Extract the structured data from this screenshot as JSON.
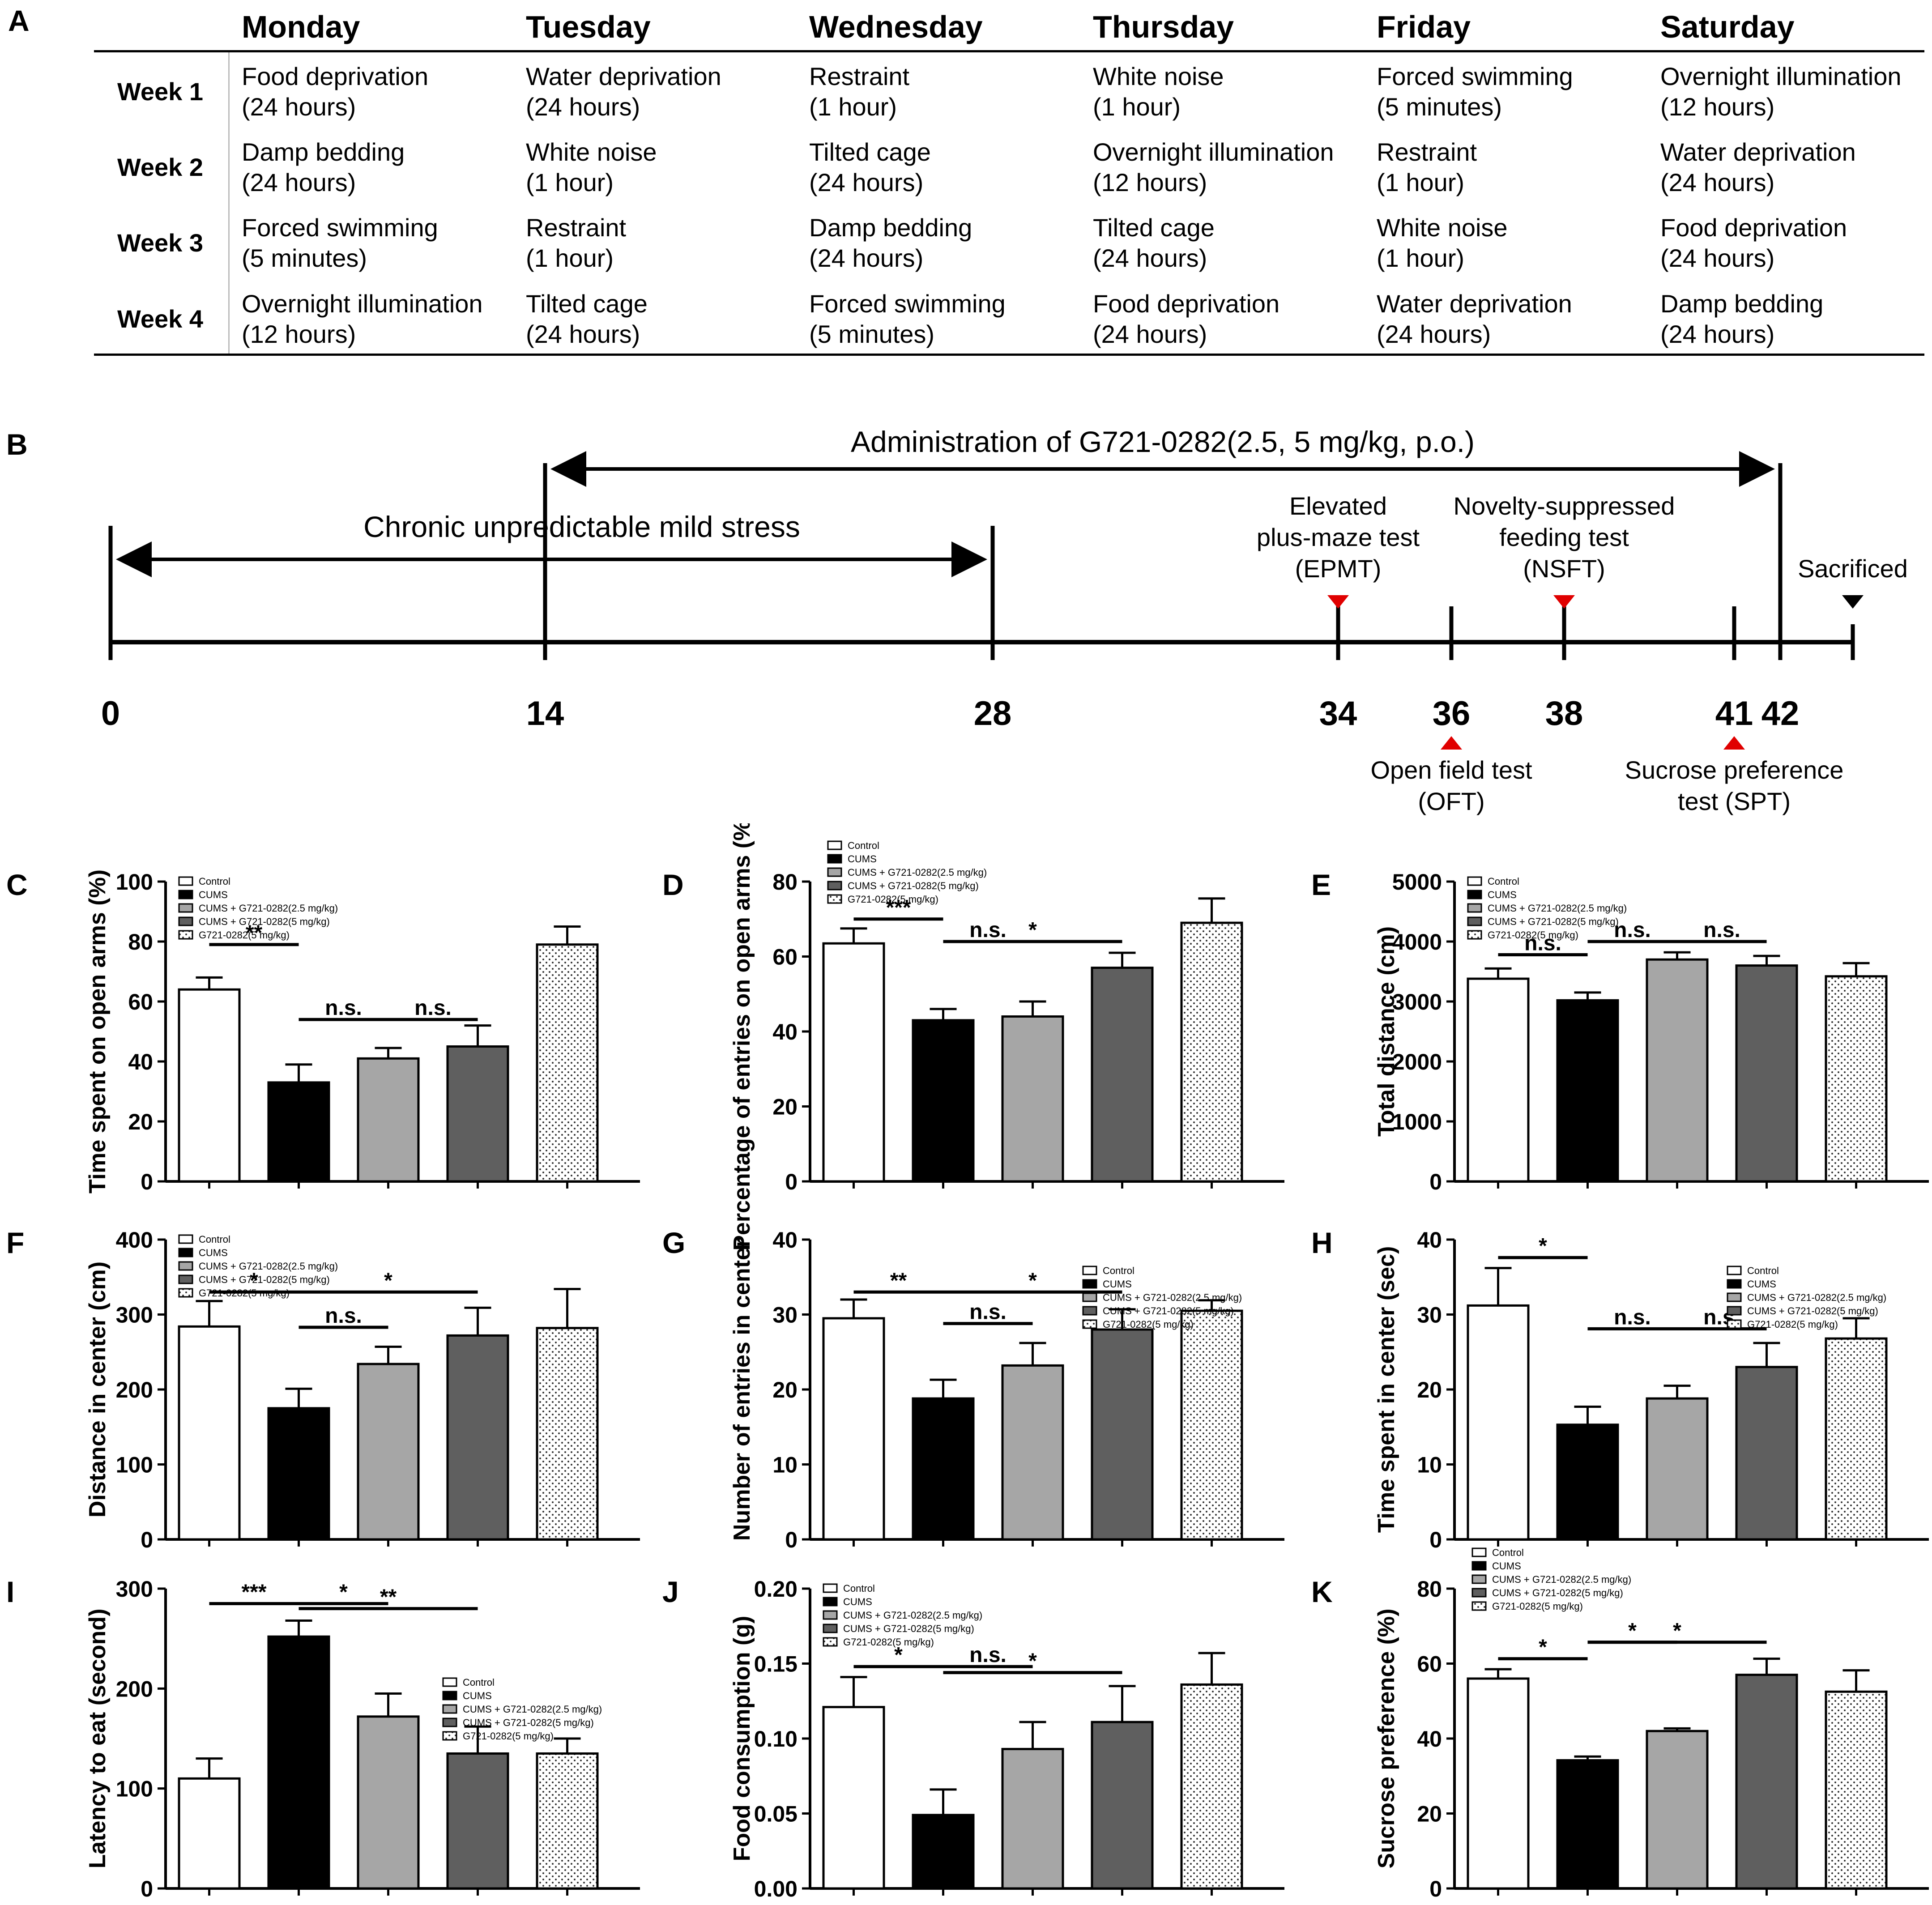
{
  "panel_labels": {
    "A": "A",
    "B": "B",
    "C": "C",
    "D": "D",
    "E": "E",
    "F": "F",
    "G": "G",
    "H": "H",
    "I": "I",
    "J": "J",
    "K": "K"
  },
  "schedule": {
    "days": [
      "Monday",
      "Tuesday",
      "Wednesday",
      "Thursday",
      "Friday",
      "Saturday"
    ],
    "weeks": [
      {
        "label": "Week 1",
        "cells": [
          [
            "Food deprivation",
            "(24 hours)"
          ],
          [
            "Water deprivation",
            "(24 hours)"
          ],
          [
            "Restraint",
            "(1 hour)"
          ],
          [
            "White noise",
            "(1 hour)"
          ],
          [
            "Forced swimming",
            "(5 minutes)"
          ],
          [
            "Overnight illumination",
            "(12 hours)"
          ]
        ]
      },
      {
        "label": "Week 2",
        "cells": [
          [
            "Damp bedding",
            "(24 hours)"
          ],
          [
            "White noise",
            "(1 hour)"
          ],
          [
            "Tilted cage",
            "(24 hours)"
          ],
          [
            "Overnight illumination",
            "(12 hours)"
          ],
          [
            "Restraint",
            "(1 hour)"
          ],
          [
            "Water deprivation",
            "(24 hours)"
          ]
        ]
      },
      {
        "label": "Week 3",
        "cells": [
          [
            "Forced swimming",
            "(5 minutes)"
          ],
          [
            "Restraint",
            "(1 hour)"
          ],
          [
            "Damp bedding",
            "(24 hours)"
          ],
          [
            "Tilted cage",
            "(24 hours)"
          ],
          [
            "White noise",
            "(1 hour)"
          ],
          [
            "Food deprivation",
            "(24 hours)"
          ]
        ]
      },
      {
        "label": "Week 4",
        "cells": [
          [
            "Overnight illumination",
            "(12 hours)"
          ],
          [
            "Tilted cage",
            "(24 hours)"
          ],
          [
            "Forced swimming",
            "(5 minutes)"
          ],
          [
            "Food deprivation",
            "(24 hours)"
          ],
          [
            "Water deprivation",
            "(24 hours)"
          ],
          [
            "Damp bedding",
            "(24 hours)"
          ]
        ]
      }
    ]
  },
  "timeline": {
    "administration": "Administration of G721-0282(2.5, 5 mg/kg, p.o.)",
    "cums": "Chronic unpredictable mild stress",
    "days": [
      "0",
      "14",
      "28",
      "34",
      "36",
      "38",
      "41",
      "42"
    ],
    "tests_above": [
      {
        "day": "34",
        "lines": [
          "Elevated",
          "plus-maze test",
          "(EPMT)"
        ]
      },
      {
        "day": "38",
        "lines": [
          "Novelty-suppressed",
          "feeding test",
          "(NSFT)"
        ]
      }
    ],
    "tests_below": [
      {
        "day": "36",
        "lines": [
          "Open field test",
          "(OFT)"
        ]
      },
      {
        "day": "41",
        "lines": [
          "Sucrose preference",
          "test (SPT)"
        ]
      }
    ],
    "sacrificed": "Sacrificed"
  },
  "legend": [
    "Control",
    "CUMS",
    "CUMS + G721-0282(2.5 mg/kg)",
    "CUMS + G721-0282(5 mg/kg)",
    "G721-0282(5 mg/kg)"
  ],
  "legend_alt": [
    "Control",
    "CUMS",
    "CUMS + G721-0282(2.5 mg/kg)",
    "CUMS + G721-0282(5 mg/kg)",
    "G721-0282(5 mg/kg)"
  ],
  "chart_data": [
    {
      "panel": "C",
      "type": "bar",
      "ylabel": "Time spent on open arms (%)",
      "ylim": [
        0,
        100
      ],
      "yticks": [
        "0",
        "20",
        "40",
        "60",
        "80",
        "100"
      ],
      "categories": [
        "Control",
        "CUMS",
        "CUMS + G721-0282(2.5 mg/kg)",
        "CUMS + G721-0282(5 mg/kg)",
        "G721-0282(5 mg/kg)"
      ],
      "values": [
        64,
        33,
        41,
        45,
        79
      ],
      "errors": [
        4,
        6,
        3.5,
        7,
        6
      ],
      "legend_pos": "top-left",
      "sig": [
        {
          "from": 0,
          "to": 1,
          "y": 79,
          "label": "**"
        },
        {
          "from": 1,
          "to": 2,
          "y": 54,
          "label": "n.s."
        },
        {
          "from": 2,
          "to": 3,
          "y": 54,
          "label": "n.s."
        }
      ]
    },
    {
      "panel": "D",
      "type": "bar",
      "ylabel": "Percentage of entries on open arms (%)",
      "ylim": [
        0,
        80
      ],
      "yticks": [
        "0",
        "20",
        "40",
        "60",
        "80"
      ],
      "categories": [
        "Control",
        "CUMS",
        "CUMS + G721-0282(2.5 mg/kg)",
        "CUMS + G721-0282(5 mg/kg)",
        "G721-0282(5 mg/kg)"
      ],
      "values": [
        63.5,
        43,
        44,
        57,
        69
      ],
      "errors": [
        4,
        3,
        4,
        4,
        6.5
      ],
      "legend_pos": "top-left-above",
      "sig": [
        {
          "from": 0,
          "to": 1,
          "y": 70,
          "label": "***"
        },
        {
          "from": 1,
          "to": 2,
          "y": 64,
          "label": "n.s."
        },
        {
          "from": 1,
          "to": 3,
          "y": 64,
          "label": "*"
        }
      ]
    },
    {
      "panel": "E",
      "type": "bar",
      "ylabel": "Total distance (cm)",
      "ylim": [
        0,
        5000
      ],
      "yticks": [
        "0",
        "1000",
        "2000",
        "3000",
        "4000",
        "5000"
      ],
      "categories": [
        "Control",
        "CUMS",
        "CUMS + G721-0282(2.5 mg/kg)",
        "CUMS + G721-0282(5 mg/kg)",
        "G721-0282(5 mg/kg)"
      ],
      "values": [
        3380,
        3020,
        3700,
        3600,
        3420
      ],
      "errors": [
        170,
        130,
        120,
        160,
        220
      ],
      "legend_pos": "top-left",
      "sig": [
        {
          "from": 0,
          "to": 1,
          "y": 3780,
          "label": "n.s."
        },
        {
          "from": 1,
          "to": 2,
          "y": 4000,
          "label": "n.s."
        },
        {
          "from": 2,
          "to": 3,
          "y": 4000,
          "label": "n.s."
        }
      ]
    },
    {
      "panel": "F",
      "type": "bar",
      "ylabel": "Distance in center (cm)",
      "ylim": [
        0,
        400
      ],
      "yticks": [
        "0",
        "100",
        "200",
        "300",
        "400"
      ],
      "categories": [
        "Control",
        "CUMS",
        "CUMS + G721-0282(2.5 mg/kg)",
        "CUMS + G721-0282(5 mg/kg)",
        "G721-0282(5 mg/kg)"
      ],
      "values": [
        284,
        175,
        234,
        272,
        282
      ],
      "errors": [
        34,
        26,
        23,
        37,
        52
      ],
      "legend_pos": "top-left",
      "sig": [
        {
          "from": 0,
          "to": 1,
          "y": 330,
          "label": "*"
        },
        {
          "from": 1,
          "to": 3,
          "y": 330,
          "label": "*"
        },
        {
          "from": 1,
          "to": 2,
          "y": 283,
          "label": "n.s."
        }
      ]
    },
    {
      "panel": "G",
      "type": "bar",
      "ylabel": "Number of entries in center",
      "ylim": [
        0,
        40
      ],
      "yticks": [
        "0",
        "10",
        "20",
        "30",
        "40"
      ],
      "categories": [
        "Control",
        "CUMS",
        "CUMS + G721-0282(2.5 mg/kg)",
        "CUMS + G721-0282(5 mg/kg)",
        "G721-0282(5 mg/kg)"
      ],
      "values": [
        29.5,
        18.8,
        23.2,
        28,
        30.5
      ],
      "errors": [
        2.5,
        2.5,
        3,
        2.7,
        1.4
      ],
      "legend_pos": "top-right",
      "sig": [
        {
          "from": 0,
          "to": 1,
          "y": 33,
          "label": "**"
        },
        {
          "from": 1,
          "to": 3,
          "y": 33,
          "label": "*"
        },
        {
          "from": 1,
          "to": 2,
          "y": 28.8,
          "label": "n.s."
        }
      ]
    },
    {
      "panel": "H",
      "type": "bar",
      "ylabel": "Time spent in center (sec)",
      "ylim": [
        0,
        40
      ],
      "yticks": [
        "0",
        "10",
        "20",
        "30",
        "40"
      ],
      "categories": [
        "Control",
        "CUMS",
        "CUMS + G721-0282(2.5 mg/kg)",
        "CUMS + G721-0282(5 mg/kg)",
        "G721-0282(5 mg/kg)"
      ],
      "values": [
        31.2,
        15.3,
        18.8,
        23,
        26.8
      ],
      "errors": [
        5,
        2.4,
        1.7,
        3.2,
        2.7
      ],
      "legend_pos": "top-right",
      "sig": [
        {
          "from": 0,
          "to": 1,
          "y": 37.6,
          "label": "*"
        },
        {
          "from": 1,
          "to": 2,
          "y": 28.1,
          "label": "n.s."
        },
        {
          "from": 2,
          "to": 3,
          "y": 28.1,
          "label": "n.s."
        }
      ]
    },
    {
      "panel": "I",
      "type": "bar",
      "ylabel": "Latency to eat (second)",
      "ylim": [
        0,
        300
      ],
      "yticks": [
        "0",
        "100",
        "200",
        "300"
      ],
      "categories": [
        "Control",
        "CUMS",
        "CUMS + G721-0282(2.5 mg/kg)",
        "CUMS + G721-0282(5 mg/kg)",
        "G721-0282(5 mg/kg)"
      ],
      "values": [
        110,
        252,
        172,
        135,
        135
      ],
      "errors": [
        20,
        16,
        23,
        27,
        15
      ],
      "legend_pos": "right-middle",
      "sig": [
        {
          "from": 0,
          "to": 1,
          "y": 285,
          "label": "***"
        },
        {
          "from": 1,
          "to": 2,
          "y": 285,
          "label": "*"
        },
        {
          "from": 1,
          "to": 3,
          "y": 280,
          "label": "**"
        }
      ]
    },
    {
      "panel": "J",
      "type": "bar",
      "ylabel": "Food consumption (g)",
      "ylim": [
        0,
        0.2
      ],
      "yticks": [
        "0.00",
        "0.05",
        "0.10",
        "0.15",
        "0.20"
      ],
      "categories": [
        "Control",
        "CUMS",
        "CUMS + G721-0282(2.5 mg/kg)",
        "CUMS + G721-0282(5 mg/kg)",
        "G721-0282(5 mg/kg)"
      ],
      "values": [
        0.121,
        0.049,
        0.093,
        0.111,
        0.136
      ],
      "errors": [
        0.02,
        0.017,
        0.018,
        0.024,
        0.021
      ],
      "legend_pos": "top-left",
      "sig": [
        {
          "from": 0,
          "to": 1,
          "y": 0.148,
          "label": "*"
        },
        {
          "from": 1,
          "to": 2,
          "y": 0.148,
          "label": "n.s."
        },
        {
          "from": 1,
          "to": 3,
          "y": 0.144,
          "label": "*"
        }
      ]
    },
    {
      "panel": "K",
      "type": "bar",
      "ylabel": "Sucrose preference (%)",
      "ylim": [
        0,
        80
      ],
      "yticks": [
        "0",
        "20",
        "40",
        "60",
        "80"
      ],
      "categories": [
        "Control",
        "CUMS",
        "CUMS + G721-0282(2.5 mg/kg)",
        "CUMS + G721-0282(5 mg/kg)",
        "G721-0282(5 mg/kg)"
      ],
      "values": [
        56,
        34.2,
        42,
        57,
        52.5
      ],
      "errors": [
        2.5,
        1,
        0.7,
        4.3,
        5.7
      ],
      "legend_pos": "top-left-above",
      "sig": [
        {
          "from": 0,
          "to": 1,
          "y": 61.3,
          "label": "*"
        },
        {
          "from": 1,
          "to": 2,
          "y": 65.7,
          "label": "*"
        },
        {
          "from": 1,
          "to": 3,
          "y": 65.7,
          "label": "*"
        }
      ]
    }
  ]
}
